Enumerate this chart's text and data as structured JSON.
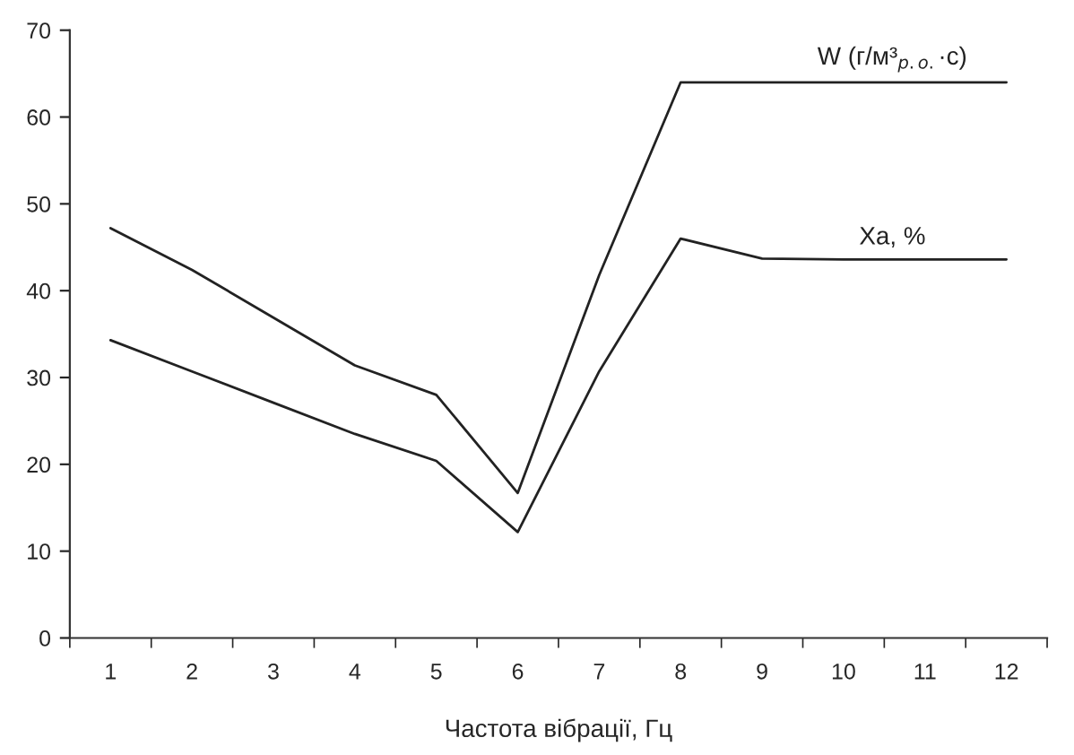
{
  "chart_data": {
    "type": "line",
    "xlabel": "Частота вібрації, Гц",
    "categories": [
      "1",
      "2",
      "3",
      "4",
      "5",
      "6",
      "7",
      "8",
      "9",
      "10",
      "11",
      "12"
    ],
    "series": [
      {
        "name": "W (г/м³$_{р.о.}$·с)",
        "color": "#222222",
        "values": [
          47.2,
          42.4,
          36.9,
          31.4,
          28.0,
          16.7,
          41.8,
          64.0,
          64.0,
          64.0,
          64.0,
          64.0
        ]
      },
      {
        "name": "Xa, %",
        "color": "#222222",
        "values": [
          34.3,
          30.7,
          27.1,
          23.5,
          20.4,
          12.2,
          30.7,
          46.0,
          43.7,
          43.6,
          43.6,
          43.6
        ]
      }
    ],
    "ylim": [
      0,
      70
    ],
    "yticks": [
      0,
      10,
      20,
      30,
      40,
      50,
      60,
      70
    ],
    "grid": false,
    "legend": false,
    "marker": "none",
    "line_style": "solid"
  }
}
